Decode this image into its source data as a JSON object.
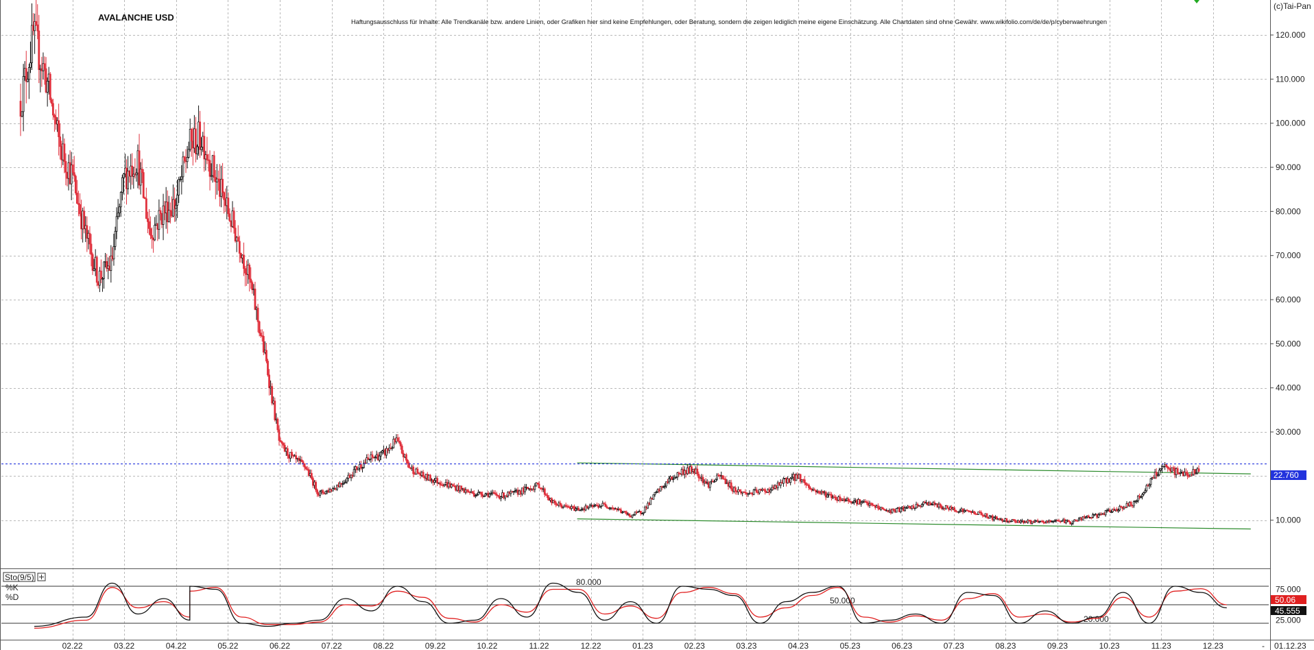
{
  "window": {
    "symbol_title": "AVALANCHE USD",
    "disclaimer": "Haftungsausschluss für Inhalte: Alle Trendkanäle bzw. andere Linien, oder Grafiken hier sind keine Empfehlungen, oder Beratung, sondern die zeigen lediglich meine eigene Einschätzung. Alle Chartdaten sind ohne Gewähr.  www.wikifolio.com/de/de/p/cyberwaehrungen",
    "copyright": "(c)Tai-Pan",
    "date_label": "01.12.23",
    "scroll_marker": "-"
  },
  "colors": {
    "up_candle": "#111111",
    "down_candle": "#e0303c",
    "trend_channel": "#2a8a2a",
    "price_line": "#2233dd",
    "stoch_k": "#111111",
    "stoch_d": "#e02020",
    "grid": "#b8b8b8"
  },
  "chart_data": [
    {
      "type": "candlestick",
      "title": "AVALANCHE USD",
      "x_tick_labels": [
        "02.22",
        "03.22",
        "04.22",
        "05.22",
        "06.22",
        "07.22",
        "08.22",
        "09.22",
        "10.22",
        "11.22",
        "12.22",
        "01.23",
        "02.23",
        "03.23",
        "04.23",
        "05.23",
        "06.23",
        "07.23",
        "08.23",
        "09.23",
        "10.23",
        "11.23",
        "12.23"
      ],
      "y_tick_labels": [
        "10.000",
        "20.000",
        "30.000",
        "40.000",
        "50.000",
        "60.000",
        "70.000",
        "80.000",
        "90.000",
        "100.000",
        "110.000",
        "120.000"
      ],
      "ylim": [
        0,
        127
      ],
      "y_axis_side": "right",
      "grid": true,
      "current_price": {
        "value": 22.76,
        "label": "22.760"
      },
      "trend_channel": {
        "upper": {
          "from": [
            "12.22",
            23.0
          ],
          "to": [
            "12.23",
            20.5
          ]
        },
        "lower": {
          "from": [
            "12.22",
            10.3
          ],
          "to": [
            "12.23",
            8.0
          ]
        }
      },
      "close_path": [
        [
          "01.22",
          105
        ],
        [
          "01.22",
          120
        ],
        [
          "01.22",
          110
        ],
        [
          "01.22",
          95
        ],
        [
          "02.22",
          88
        ],
        [
          "02.22",
          75
        ],
        [
          "02.22",
          65
        ],
        [
          "02.22",
          68
        ],
        [
          "03.22",
          88
        ],
        [
          "03.22",
          92
        ],
        [
          "03.22",
          75
        ],
        [
          "03.22",
          80
        ],
        [
          "04.22",
          82
        ],
        [
          "04.22",
          95
        ],
        [
          "04.22",
          97
        ],
        [
          "04.22",
          88
        ],
        [
          "05.22",
          80
        ],
        [
          "05.22",
          72
        ],
        [
          "05.22",
          60
        ],
        [
          "05.22",
          45
        ],
        [
          "06.22",
          27
        ],
        [
          "06.22",
          24
        ],
        [
          "06.22",
          22
        ],
        [
          "06.22",
          16
        ],
        [
          "07.22",
          17
        ],
        [
          "07.22",
          19
        ],
        [
          "07.22",
          22
        ],
        [
          "07.22",
          24
        ],
        [
          "08.22",
          25
        ],
        [
          "08.22",
          28
        ],
        [
          "08.22",
          22
        ],
        [
          "08.22",
          20
        ],
        [
          "09.22",
          19
        ],
        [
          "09.22",
          18
        ],
        [
          "09.22",
          17
        ],
        [
          "09.22",
          16
        ],
        [
          "10.22",
          16
        ],
        [
          "10.22",
          15.5
        ],
        [
          "10.22",
          16
        ],
        [
          "10.22",
          17
        ],
        [
          "11.22",
          18
        ],
        [
          "11.22",
          14
        ],
        [
          "11.22",
          13
        ],
        [
          "11.22",
          12.5
        ],
        [
          "12.22",
          13
        ],
        [
          "12.22",
          13.5
        ],
        [
          "12.22",
          12.5
        ],
        [
          "12.22",
          11
        ],
        [
          "01.23",
          12
        ],
        [
          "01.23",
          16
        ],
        [
          "01.23",
          19
        ],
        [
          "01.23",
          21
        ],
        [
          "02.23",
          21.5
        ],
        [
          "02.23",
          18
        ],
        [
          "02.23",
          20
        ],
        [
          "02.23",
          17
        ],
        [
          "03.23",
          16
        ],
        [
          "03.23",
          16.5
        ],
        [
          "03.23",
          17
        ],
        [
          "03.23",
          19
        ],
        [
          "04.23",
          20
        ],
        [
          "04.23",
          17
        ],
        [
          "04.23",
          16
        ],
        [
          "04.23",
          15
        ],
        [
          "05.23",
          14.5
        ],
        [
          "05.23",
          14
        ],
        [
          "05.23",
          13
        ],
        [
          "05.23",
          12
        ],
        [
          "06.23",
          12.5
        ],
        [
          "06.23",
          13
        ],
        [
          "06.23",
          14
        ],
        [
          "06.23",
          13
        ],
        [
          "07.23",
          12.5
        ],
        [
          "07.23",
          12
        ],
        [
          "07.23",
          11.5
        ],
        [
          "07.23",
          10.5
        ],
        [
          "08.23",
          10
        ],
        [
          "08.23",
          9.8
        ],
        [
          "08.23",
          9.6
        ],
        [
          "08.23",
          9.5
        ],
        [
          "09.23",
          10
        ],
        [
          "09.23",
          9.5
        ],
        [
          "09.23",
          10.5
        ],
        [
          "09.23",
          11
        ],
        [
          "10.23",
          12
        ],
        [
          "10.23",
          13
        ],
        [
          "10.23",
          14
        ],
        [
          "10.23",
          18
        ],
        [
          "11.23",
          22
        ],
        [
          "11.23",
          21
        ],
        [
          "11.23",
          20.5
        ],
        [
          "11.23",
          21
        ]
      ]
    },
    {
      "type": "line",
      "title": "Sto(9/5)",
      "series": [
        {
          "name": "%K",
          "color": "#111111",
          "last_value": "45.555"
        },
        {
          "name": "%D",
          "color": "#e02020",
          "last_value": "50.06"
        }
      ],
      "levels": [
        {
          "value": 80,
          "label": "80.000"
        },
        {
          "value": 50,
          "label": "50.000"
        },
        {
          "value": 20,
          "label": "20.000"
        }
      ],
      "y_tick_labels": [
        "25.000",
        "75.000"
      ],
      "ylim": [
        0,
        100
      ],
      "k_path": [
        [
          "01.22",
          15
        ],
        [
          "02.22",
          30
        ],
        [
          "02.22",
          85
        ],
        [
          "03.22",
          35
        ],
        [
          "03.22",
          60
        ],
        [
          "03.22",
          25
        ],
        [
          "04.22",
          80
        ],
        [
          "04.22",
          75
        ],
        [
          "05.22",
          20
        ],
        [
          "05.22",
          15
        ],
        [
          "06.22",
          20
        ],
        [
          "06.22",
          25
        ],
        [
          "07.22",
          60
        ],
        [
          "07.22",
          40
        ],
        [
          "08.22",
          80
        ],
        [
          "08.22",
          55
        ],
        [
          "09.22",
          20
        ],
        [
          "09.22",
          25
        ],
        [
          "10.22",
          60
        ],
        [
          "10.22",
          30
        ],
        [
          "11.22",
          85
        ],
        [
          "11.22",
          70
        ],
        [
          "12.22",
          25
        ],
        [
          "12.22",
          55
        ],
        [
          "01.23",
          20
        ],
        [
          "01.23",
          80
        ],
        [
          "02.23",
          75
        ],
        [
          "02.23",
          65
        ],
        [
          "03.23",
          20
        ],
        [
          "03.23",
          55
        ],
        [
          "04.23",
          70
        ],
        [
          "04.23",
          80
        ],
        [
          "05.23",
          20
        ],
        [
          "05.23",
          25
        ],
        [
          "06.23",
          35
        ],
        [
          "06.23",
          20
        ],
        [
          "07.23",
          70
        ],
        [
          "07.23",
          65
        ],
        [
          "08.23",
          20
        ],
        [
          "08.23",
          40
        ],
        [
          "09.23",
          20
        ],
        [
          "09.23",
          30
        ],
        [
          "10.23",
          70
        ],
        [
          "10.23",
          20
        ],
        [
          "11.23",
          80
        ],
        [
          "11.23",
          70
        ],
        [
          "12.23",
          45
        ]
      ],
      "d_path": [
        [
          "01.22",
          12
        ],
        [
          "02.22",
          25
        ],
        [
          "02.22",
          78
        ],
        [
          "03.22",
          45
        ],
        [
          "03.22",
          55
        ],
        [
          "03.22",
          30
        ],
        [
          "04.22",
          72
        ],
        [
          "04.22",
          78
        ],
        [
          "05.22",
          30
        ],
        [
          "05.22",
          18
        ],
        [
          "06.22",
          18
        ],
        [
          "06.22",
          22
        ],
        [
          "07.22",
          50
        ],
        [
          "07.22",
          48
        ],
        [
          "08.22",
          72
        ],
        [
          "08.22",
          62
        ],
        [
          "09.22",
          28
        ],
        [
          "09.22",
          22
        ],
        [
          "10.22",
          50
        ],
        [
          "10.22",
          38
        ],
        [
          "11.22",
          75
        ],
        [
          "11.22",
          75
        ],
        [
          "12.22",
          35
        ],
        [
          "12.22",
          48
        ],
        [
          "01.23",
          28
        ],
        [
          "01.23",
          70
        ],
        [
          "02.23",
          78
        ],
        [
          "02.23",
          68
        ],
        [
          "03.23",
          30
        ],
        [
          "03.23",
          45
        ],
        [
          "04.23",
          65
        ],
        [
          "04.23",
          78
        ],
        [
          "05.23",
          30
        ],
        [
          "05.23",
          22
        ],
        [
          "06.23",
          32
        ],
        [
          "06.23",
          25
        ],
        [
          "07.23",
          60
        ],
        [
          "07.23",
          68
        ],
        [
          "08.23",
          30
        ],
        [
          "08.23",
          35
        ],
        [
          "09.23",
          22
        ],
        [
          "09.23",
          28
        ],
        [
          "10.23",
          62
        ],
        [
          "10.23",
          30
        ],
        [
          "11.23",
          72
        ],
        [
          "11.23",
          76
        ],
        [
          "12.23",
          50
        ]
      ]
    }
  ]
}
